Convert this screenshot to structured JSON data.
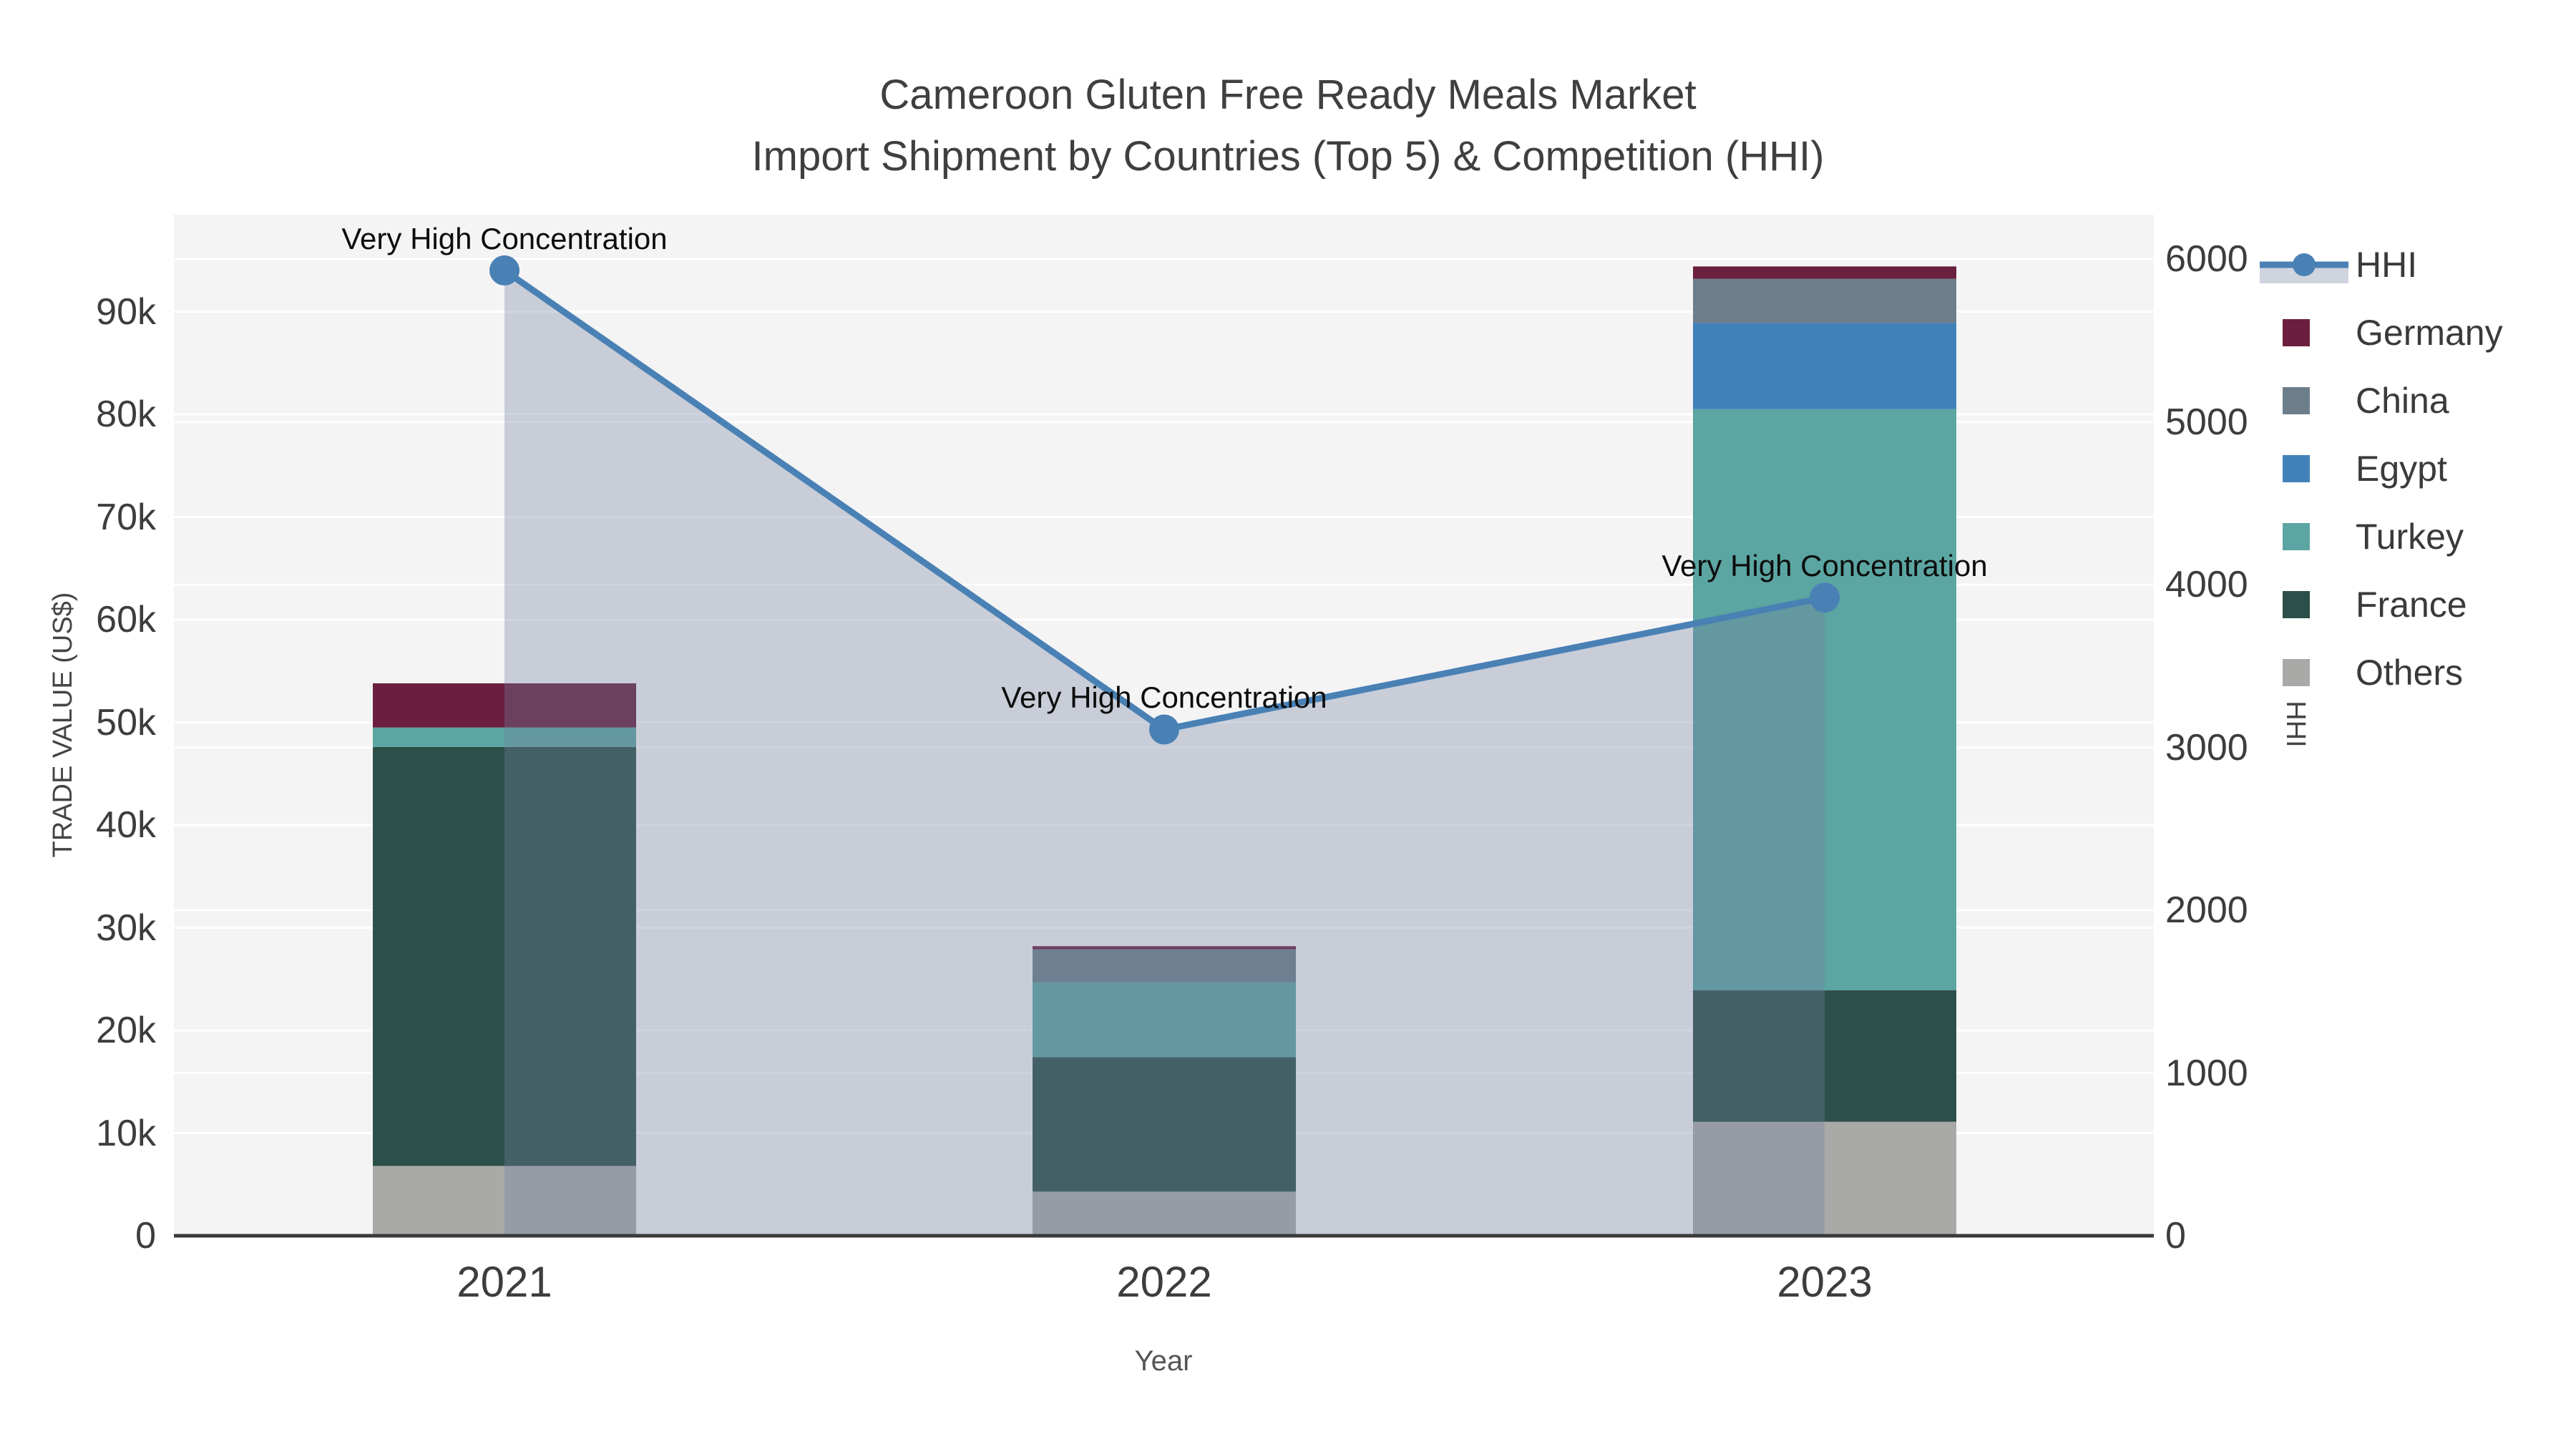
{
  "title": {
    "line1": "Cameroon Gluten Free Ready Meals Market",
    "line2": "Import Shipment by Countries (Top 5) & Competition (HHI)"
  },
  "chart_data": {
    "type": "bar+line",
    "categories": [
      "2021",
      "2022",
      "2023"
    ],
    "x_axis": {
      "title": "Year"
    },
    "left_axis": {
      "title": "TRADE VALUE (US$)",
      "tick_labels": [
        "0",
        "10k",
        "20k",
        "30k",
        "40k",
        "50k",
        "60k",
        "70k",
        "80k",
        "90k"
      ],
      "tick_values": [
        0,
        10000,
        20000,
        30000,
        40000,
        50000,
        60000,
        70000,
        80000,
        90000
      ],
      "range": [
        0,
        99400
      ]
    },
    "right_axis": {
      "title": "HHI",
      "tick_labels": [
        "0",
        "1000",
        "2000",
        "3000",
        "4000",
        "5000",
        "6000"
      ],
      "tick_values": [
        0,
        1000,
        2000,
        3000,
        4000,
        5000,
        6000
      ],
      "range": [
        0,
        6270
      ]
    },
    "stack_order": [
      "Others",
      "France",
      "Turkey",
      "Egypt",
      "China",
      "Germany"
    ],
    "series": [
      {
        "name": "Germany",
        "color": "#6a1f3e",
        "values": [
          4300,
          300,
          1200
        ]
      },
      {
        "name": "China",
        "color": "#6d7e8b",
        "values": [
          0,
          3200,
          4300
        ]
      },
      {
        "name": "Egypt",
        "color": "#4181ba",
        "values": [
          0,
          0,
          8400
        ]
      },
      {
        "name": "Turkey",
        "color": "#5ba5a2",
        "values": [
          1900,
          7300,
          56600
        ]
      },
      {
        "name": "France",
        "color": "#2c4f49",
        "values": [
          40800,
          13100,
          12800
        ]
      },
      {
        "name": "Others",
        "color": "#a9aaa7",
        "values": [
          6800,
          4300,
          11100
        ]
      }
    ],
    "bar_totals": [
      53800,
      28200,
      94400
    ],
    "hhi": {
      "name": "HHI",
      "color": "#4a81b5",
      "area_color": "rgba(115,130,160,0.34)",
      "values": [
        5930,
        3110,
        3920
      ],
      "annotations": [
        "Very High Concentration",
        "Very High Concentration",
        "Very High Concentration"
      ]
    },
    "legend": [
      {
        "label": "HHI",
        "type": "line"
      },
      {
        "label": "Germany",
        "type": "swatch"
      },
      {
        "label": "China",
        "type": "swatch"
      },
      {
        "label": "Egypt",
        "type": "swatch"
      },
      {
        "label": "Turkey",
        "type": "swatch"
      },
      {
        "label": "France",
        "type": "swatch"
      },
      {
        "label": "Others",
        "type": "swatch"
      }
    ],
    "grid": true,
    "legend_position": "right"
  },
  "colors": {
    "page_bg": "#ffffff",
    "plot_bg": "#f4f4f4",
    "grid": "#ffffff",
    "axis_line": "#3a3a3a",
    "text": "#3d3d3d",
    "annotation": "#0d0d0d"
  }
}
